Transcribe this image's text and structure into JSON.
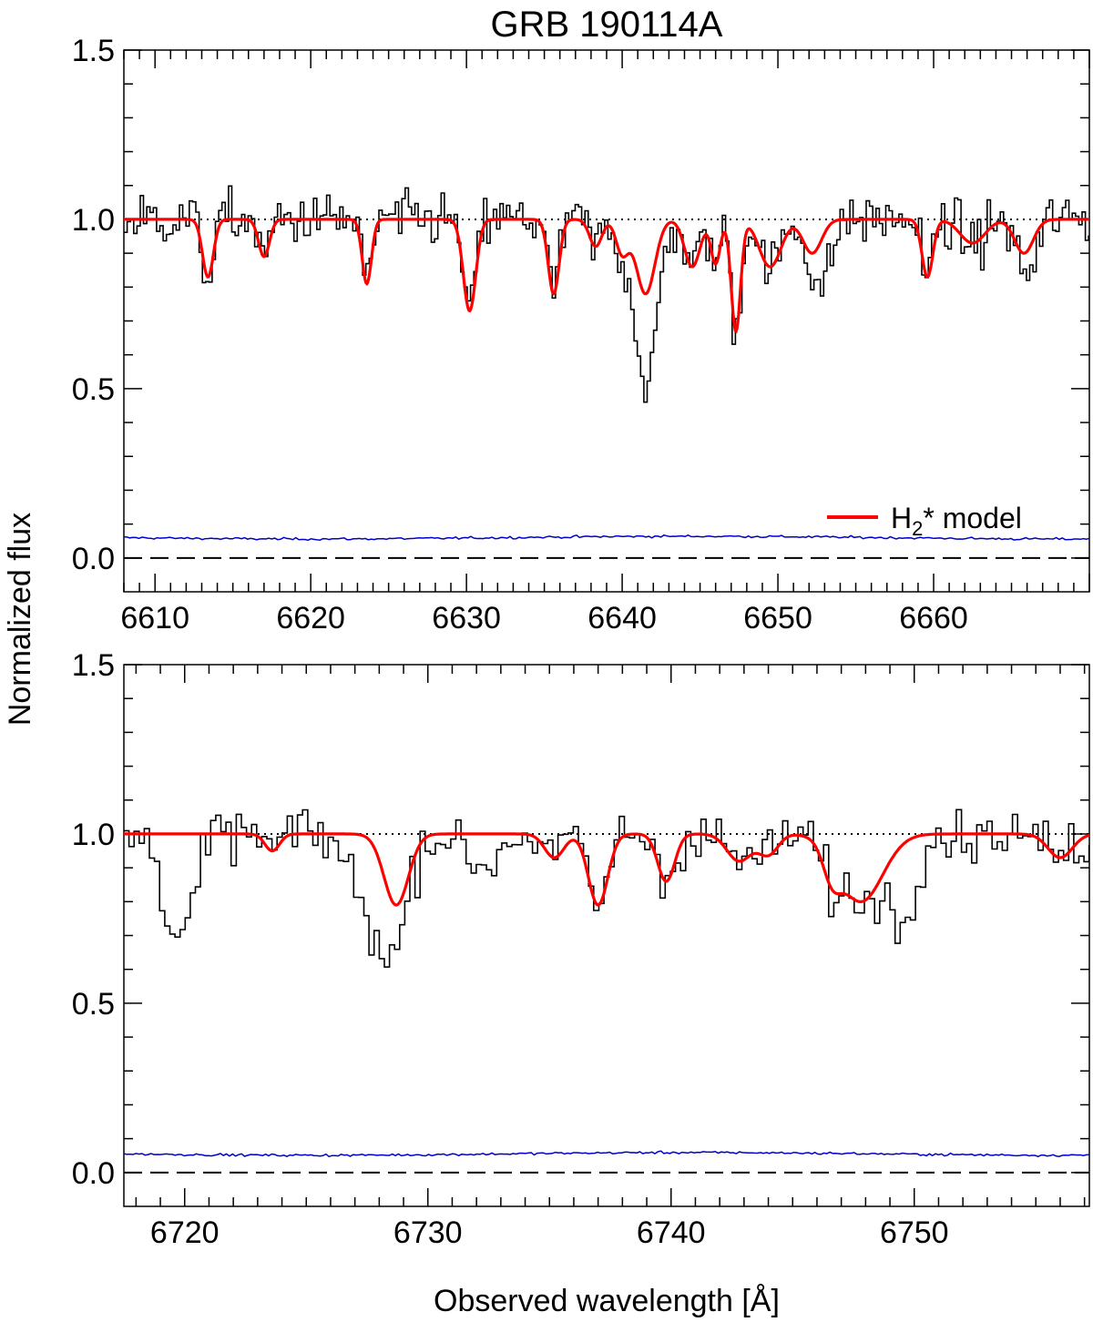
{
  "chart_data": {
    "type": "line",
    "title": "GRB 190114A",
    "xlabel": "Observed wavelength [Å]",
    "ylabel": "Normalized flux",
    "legend": {
      "label_main": "H",
      "label_sub": "2",
      "label_rest": "* model",
      "position": "lower-right of top panel",
      "color": "#ff0000"
    },
    "colors": {
      "data": "#000000",
      "model": "#ff0000",
      "error": "#0000cc",
      "frame": "#000000"
    },
    "panels": [
      {
        "name": "top",
        "xlim": [
          6608,
          6670
        ],
        "ylim": [
          -0.1,
          1.5
        ],
        "xticks": [
          6610,
          6620,
          6630,
          6640,
          6650,
          6660
        ],
        "yticks": [
          0.0,
          0.5,
          1.0,
          1.5
        ],
        "ytick_labels": [
          "0.0",
          "0.5",
          "1.0",
          "1.5"
        ],
        "continuum_level": 1.0,
        "zero_level": 0.0,
        "error_level": 0.06,
        "features": [
          {
            "center": 6613.4,
            "depth": 0.17,
            "width": 0.35
          },
          {
            "center": 6617.0,
            "depth": 0.11,
            "width": 0.35
          },
          {
            "center": 6623.6,
            "depth": 0.19,
            "width": 0.3
          },
          {
            "center": 6630.2,
            "depth": 0.27,
            "width": 0.4
          },
          {
            "center": 6635.6,
            "depth": 0.22,
            "width": 0.35
          },
          {
            "center": 6638.3,
            "depth": 0.08,
            "width": 0.4
          },
          {
            "center": 6640.0,
            "depth": 0.1,
            "width": 0.4
          },
          {
            "center": 6641.5,
            "depth": 0.22,
            "width": 0.6
          },
          {
            "center": 6644.5,
            "depth": 0.14,
            "width": 0.5
          },
          {
            "center": 6646.0,
            "depth": 0.13,
            "width": 0.3
          },
          {
            "center": 6647.3,
            "depth": 0.33,
            "width": 0.3
          },
          {
            "center": 6649.5,
            "depth": 0.14,
            "width": 0.7
          },
          {
            "center": 6652.2,
            "depth": 0.1,
            "width": 0.6
          },
          {
            "center": 6659.6,
            "depth": 0.17,
            "width": 0.35
          },
          {
            "center": 6662.5,
            "depth": 0.07,
            "width": 0.8
          },
          {
            "center": 6665.8,
            "depth": 0.1,
            "width": 0.6
          }
        ],
        "extra_absorption": [
          {
            "center": 6641.6,
            "depth": 0.3,
            "width": 0.7
          },
          {
            "center": 6653.0,
            "depth": 0.15,
            "width": 0.5
          },
          {
            "center": 6666.2,
            "depth": 0.08,
            "width": 0.5
          }
        ]
      },
      {
        "name": "bottom",
        "xlim": [
          6717.5,
          6757.2
        ],
        "ylim": [
          -0.1,
          1.5
        ],
        "xticks": [
          6720,
          6730,
          6740,
          6750
        ],
        "yticks": [
          0.0,
          0.5,
          1.0,
          1.5
        ],
        "ytick_labels": [
          "0.0",
          "0.5",
          "1.0",
          "1.5"
        ],
        "continuum_level": 1.0,
        "zero_level": 0.0,
        "error_level": 0.055,
        "features": [
          {
            "center": 6723.6,
            "depth": 0.05,
            "width": 0.3
          },
          {
            "center": 6728.7,
            "depth": 0.21,
            "width": 0.5
          },
          {
            "center": 6735.2,
            "depth": 0.07,
            "width": 0.4
          },
          {
            "center": 6737.0,
            "depth": 0.21,
            "width": 0.4
          },
          {
            "center": 6739.8,
            "depth": 0.14,
            "width": 0.35
          },
          {
            "center": 6742.8,
            "depth": 0.08,
            "width": 0.5
          },
          {
            "center": 6744.0,
            "depth": 0.06,
            "width": 0.4
          },
          {
            "center": 6746.6,
            "depth": 0.08,
            "width": 0.35
          },
          {
            "center": 6747.8,
            "depth": 0.2,
            "width": 0.9
          },
          {
            "center": 6756.0,
            "depth": 0.07,
            "width": 0.5
          }
        ],
        "extra_absorption": [
          {
            "center": 6719.8,
            "depth": 0.3,
            "width": 0.6
          },
          {
            "center": 6727.8,
            "depth": 0.25,
            "width": 0.8
          },
          {
            "center": 6749.5,
            "depth": 0.22,
            "width": 0.5
          },
          {
            "center": 6732.2,
            "depth": 0.1,
            "width": 0.6
          }
        ]
      }
    ]
  }
}
